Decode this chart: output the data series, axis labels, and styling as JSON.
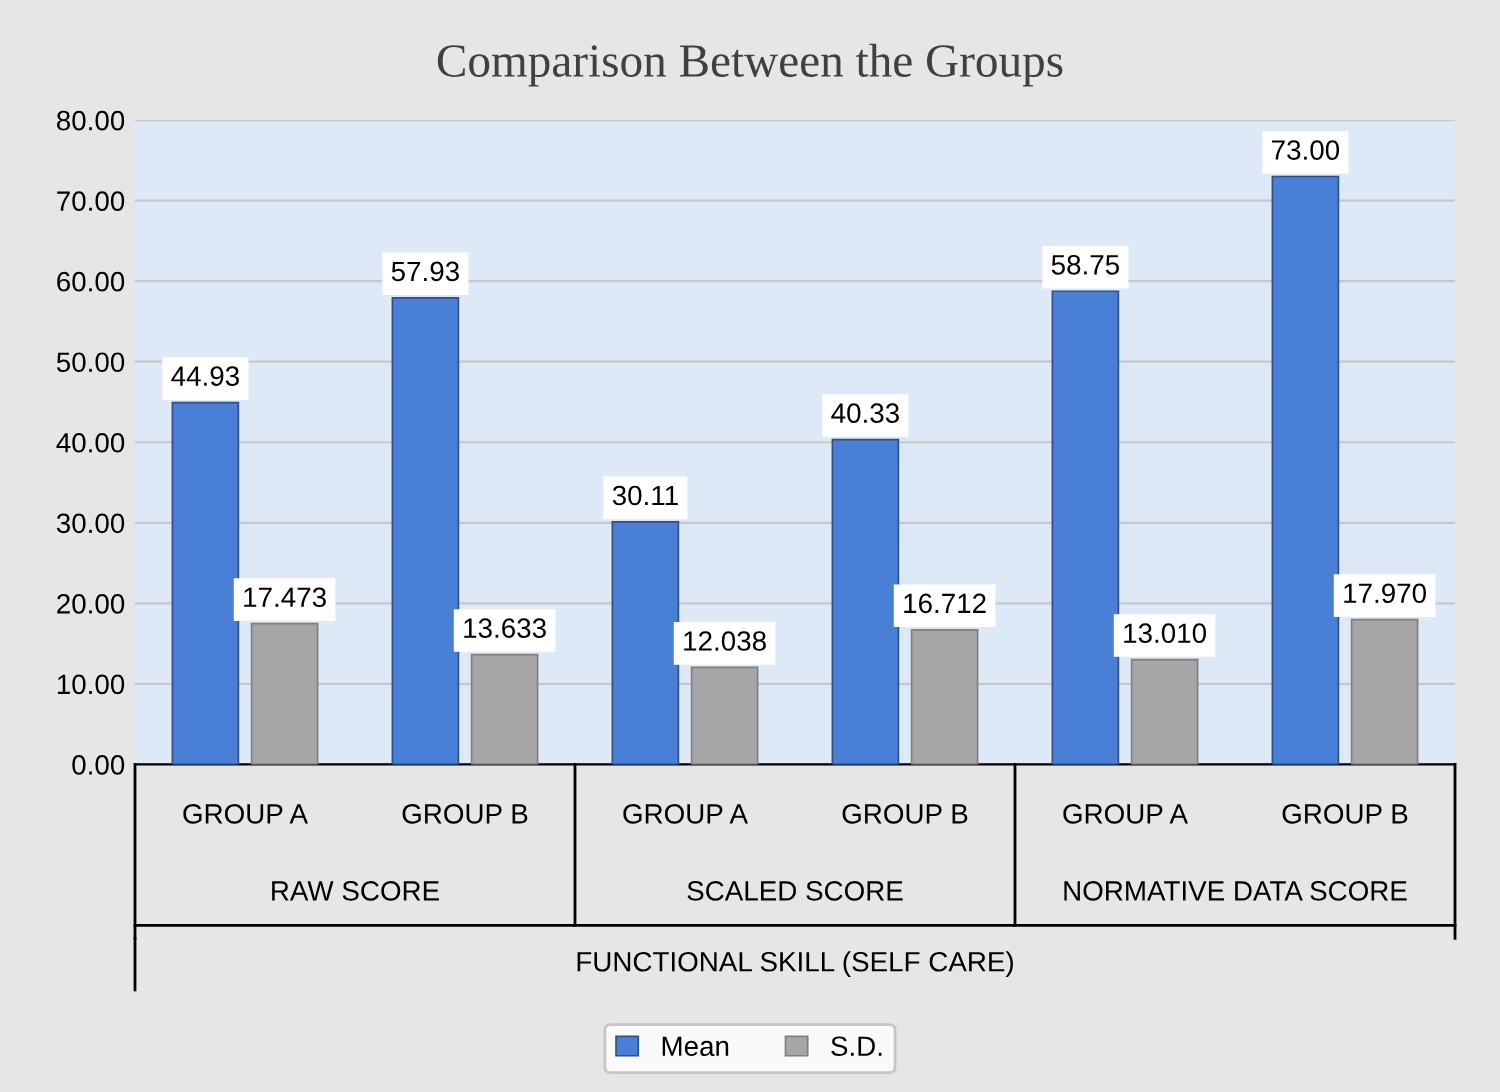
{
  "chart_data": {
    "type": "bar",
    "title": "Comparison Between the Groups",
    "categories": [
      "GROUP A",
      "GROUP B",
      "GROUP A",
      "GROUP B",
      "GROUP A",
      "GROUP B"
    ],
    "xlabel": "FUNCTIONAL SKILL (SELF CARE)",
    "annotations": [
      "RAW SCORE",
      "SCALED SCORE",
      "NORMATIVE DATA SCORE"
    ],
    "series": [
      {
        "name": "Mean",
        "color": "#4a7fd6",
        "values": [
          44.93,
          57.93,
          30.11,
          40.33,
          58.75,
          73.0
        ],
        "value_labels": [
          "44.93",
          "57.93",
          "30.11",
          "40.33",
          "58.75",
          "73.00"
        ]
      },
      {
        "name": "S.D.",
        "color": "#a6a6a6",
        "values": [
          17.473,
          13.633,
          12.038,
          16.712,
          13.01,
          17.97
        ],
        "value_labels": [
          "17.473",
          "13.633",
          "12.038",
          "16.712",
          "13.010",
          "17.970"
        ]
      }
    ],
    "ylim": [
      0,
      80
    ],
    "yticks": [
      {
        "value": 0,
        "label": "0.00"
      },
      {
        "value": 10,
        "label": "10.00"
      },
      {
        "value": 20,
        "label": "20.00"
      },
      {
        "value": 30,
        "label": "30.00"
      },
      {
        "value": 40,
        "label": "40.00"
      },
      {
        "value": 50,
        "label": "50.00"
      },
      {
        "value": 60,
        "label": "60.00"
      },
      {
        "value": 70,
        "label": "70.00"
      },
      {
        "value": 80,
        "label": "80.00"
      }
    ],
    "grid": "y",
    "legend": "bottom"
  }
}
